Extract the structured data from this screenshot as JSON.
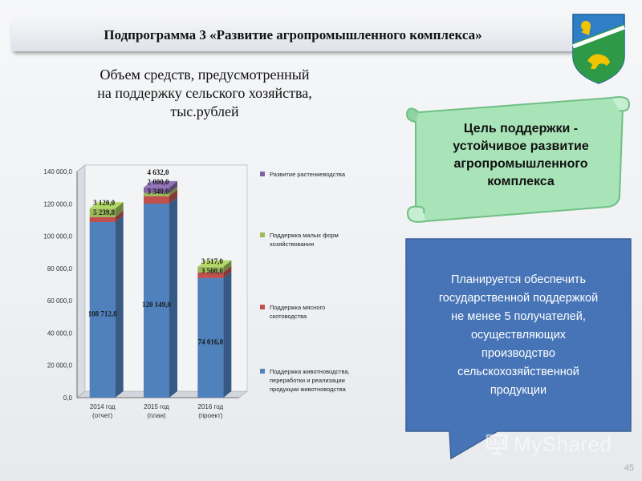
{
  "header": {
    "title": "Подпрограмма 3 «Развитие агропромышленного комплекса»"
  },
  "subtitle": [
    "Объем средств, предусмотренный",
    "на поддержку сельского хозяйства,",
    "тыс.рублей"
  ],
  "goal": {
    "lines": [
      "Цель поддержки -",
      "устойчивое развитие",
      "агропромышленного",
      "комплекса"
    ]
  },
  "callout": {
    "lines": [
      "Планируется обеспечить",
      "государственной поддержкой",
      "не менее 5 получателей,",
      "осуществляющих",
      "производство",
      "сельскохозяйственной",
      "продукции"
    ]
  },
  "watermark": {
    "text": "MyShared"
  },
  "page_number": "45",
  "colors": {
    "accent_blue": "#4a76b8",
    "scroll_green": "#a9e4b8",
    "callout_bg": "#4674b6"
  },
  "chart_data": {
    "type": "bar",
    "stacked": true,
    "categories": [
      [
        "2014 год",
        "(отчет)"
      ],
      [
        "2015 год",
        "(план)"
      ],
      [
        "2016 год",
        "(проект)"
      ]
    ],
    "series": [
      {
        "name": [
          "Поддержка животноводства,",
          "переработки и реализации",
          "продукции животноводства"
        ],
        "values": [
          108712.8,
          120149.0,
          74016.0
        ],
        "labels": [
          "108 712,8",
          "120 149,0",
          "74 016,0"
        ],
        "color": "#4f81bd"
      },
      {
        "name": [
          "Поддержка мясного",
          "скотоводства"
        ],
        "values": [
          3120.0,
          4632.0,
          3517.0
        ],
        "labels": [
          "3 120,0",
          "4 632,0",
          "3 517,0"
        ],
        "color": "#c0504d"
      },
      {
        "name": [
          "Поддержка малых форм",
          "хозяйствования"
        ],
        "values": [
          5239.8,
          2000.0,
          3500.0
        ],
        "labels": [
          "5 239,8",
          "2 000,0",
          "3 500,0"
        ],
        "color": "#9bbb59"
      },
      {
        "name": [
          "Развитие растениеводства"
        ],
        "values": [
          0,
          3340.0,
          0
        ],
        "labels": [
          "",
          "3 340,0",
          ""
        ],
        "color": "#8064a2"
      }
    ],
    "y_ticks": [
      "0,0",
      "20 000,0",
      "40 000,0",
      "60 000,0",
      "80 000,0",
      "100 000,0",
      "120 000,0",
      "140 000,0"
    ],
    "ylim": [
      0,
      140000
    ],
    "grid": true,
    "legend_position": "right"
  }
}
